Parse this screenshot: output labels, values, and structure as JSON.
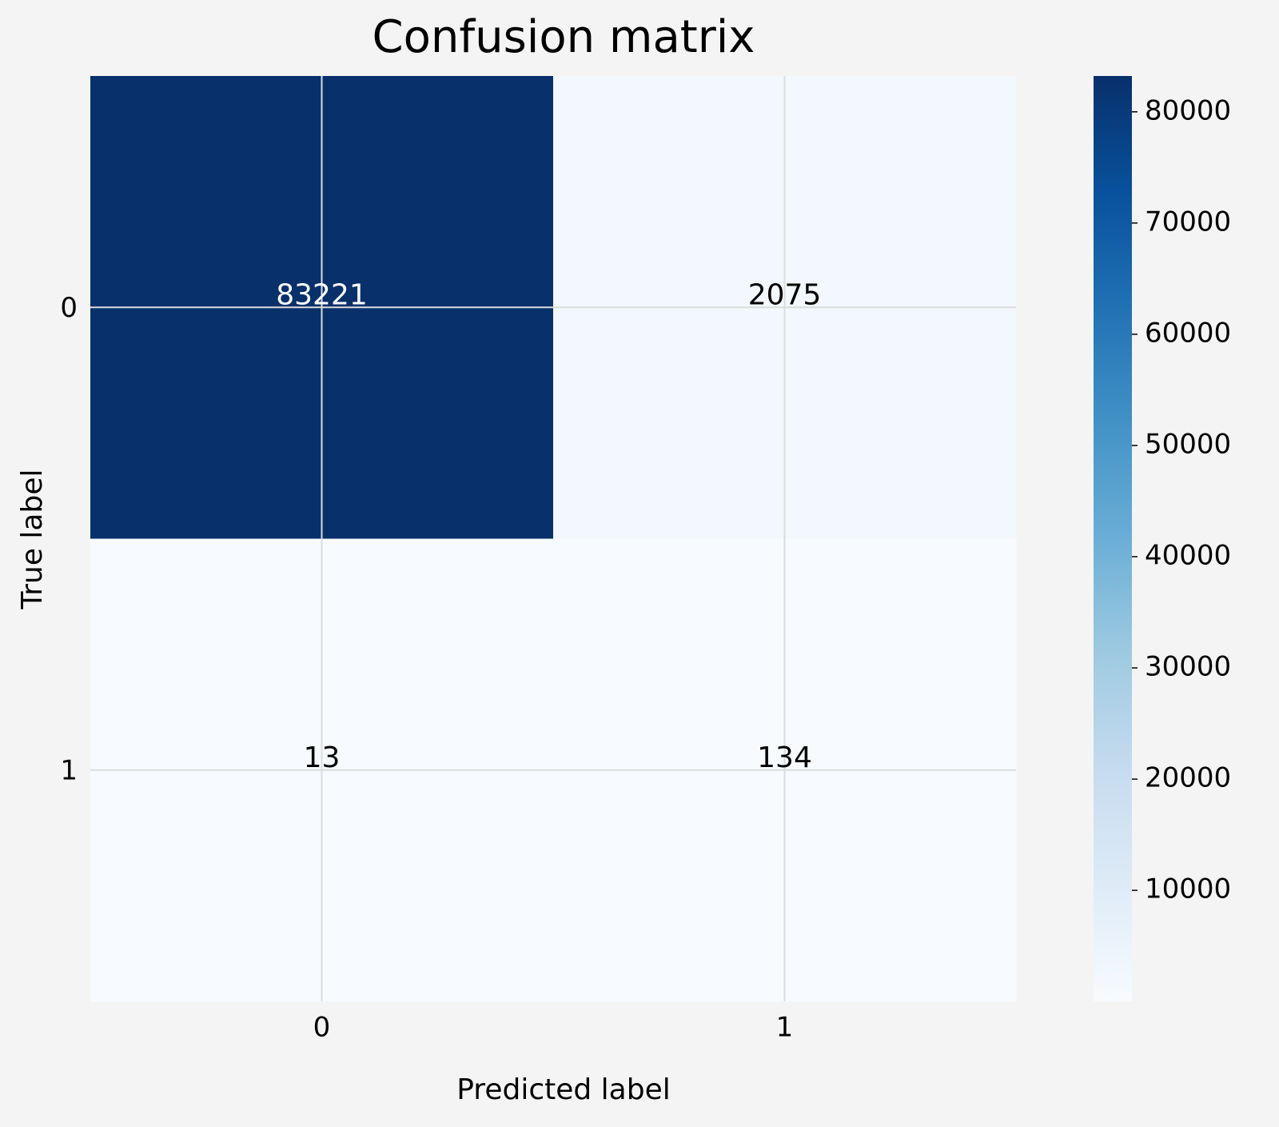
{
  "chart_data": {
    "type": "heatmap",
    "title": "Confusion matrix",
    "xlabel": "Predicted label",
    "ylabel": "True label",
    "x_categories": [
      "0",
      "1"
    ],
    "y_categories": [
      "0",
      "1"
    ],
    "values": [
      [
        83221,
        2075
      ],
      [
        13,
        134
      ]
    ],
    "colormap": "Blues",
    "clim": [
      13,
      83221
    ],
    "cticks": [
      10000,
      20000,
      30000,
      40000,
      50000,
      60000,
      70000,
      80000
    ],
    "grid": true
  }
}
